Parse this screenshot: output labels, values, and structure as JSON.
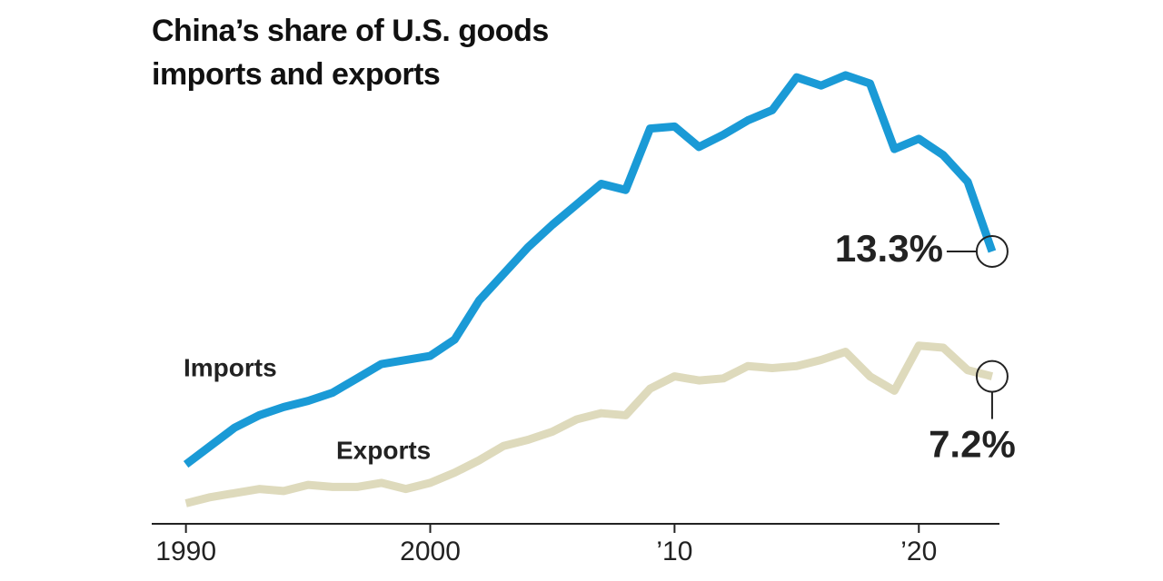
{
  "chart_data": {
    "type": "line",
    "title": "China’s share of U.S. goods imports and exports",
    "x": [
      1990,
      1991,
      1992,
      1993,
      1994,
      1995,
      1996,
      1997,
      1998,
      1999,
      2000,
      2001,
      2002,
      2003,
      2004,
      2005,
      2006,
      2007,
      2008,
      2009,
      2010,
      2011,
      2012,
      2013,
      2014,
      2015,
      2016,
      2017,
      2018,
      2019,
      2020,
      2021,
      2022,
      2023
    ],
    "series": [
      {
        "name": "Imports",
        "color": "#1a9ad6",
        "values": [
          2.9,
          3.8,
          4.7,
          5.3,
          5.7,
          6.0,
          6.4,
          7.1,
          7.8,
          8.0,
          8.2,
          9.0,
          10.9,
          12.2,
          13.5,
          14.6,
          15.6,
          16.6,
          16.3,
          19.3,
          19.4,
          18.4,
          19.0,
          19.7,
          20.2,
          21.8,
          21.4,
          21.9,
          21.5,
          18.3,
          18.8,
          18.0,
          16.7,
          13.3
        ],
        "value_labels": [
          null,
          null,
          null,
          null,
          null,
          null,
          null,
          null,
          null,
          null,
          null,
          null,
          null,
          null,
          null,
          null,
          null,
          null,
          null,
          null,
          null,
          null,
          null,
          null,
          null,
          null,
          null,
          null,
          null,
          null,
          null,
          null,
          null,
          "13.3%"
        ]
      },
      {
        "name": "Exports",
        "color": "#dedabc",
        "values": [
          1.0,
          1.3,
          1.5,
          1.7,
          1.6,
          1.9,
          1.8,
          1.8,
          2.0,
          1.7,
          2.0,
          2.5,
          3.1,
          3.8,
          4.1,
          4.5,
          5.1,
          5.4,
          5.3,
          6.6,
          7.2,
          7.0,
          7.1,
          7.7,
          7.6,
          7.7,
          8.0,
          8.4,
          7.2,
          6.5,
          8.7,
          8.6,
          7.5,
          7.2
        ],
        "value_labels": [
          null,
          null,
          null,
          null,
          null,
          null,
          null,
          null,
          null,
          null,
          null,
          null,
          null,
          null,
          null,
          null,
          null,
          null,
          null,
          null,
          null,
          null,
          null,
          null,
          null,
          null,
          null,
          null,
          null,
          null,
          null,
          null,
          null,
          "7.2%"
        ]
      }
    ],
    "xlim": [
      1988.6,
      2023.3
    ],
    "ylim": [
      0,
      24
    ],
    "xticks": [
      1990,
      2000,
      {
        "value": 2010,
        "label": "’10"
      },
      {
        "value": 2020,
        "label": "’20"
      }
    ]
  }
}
